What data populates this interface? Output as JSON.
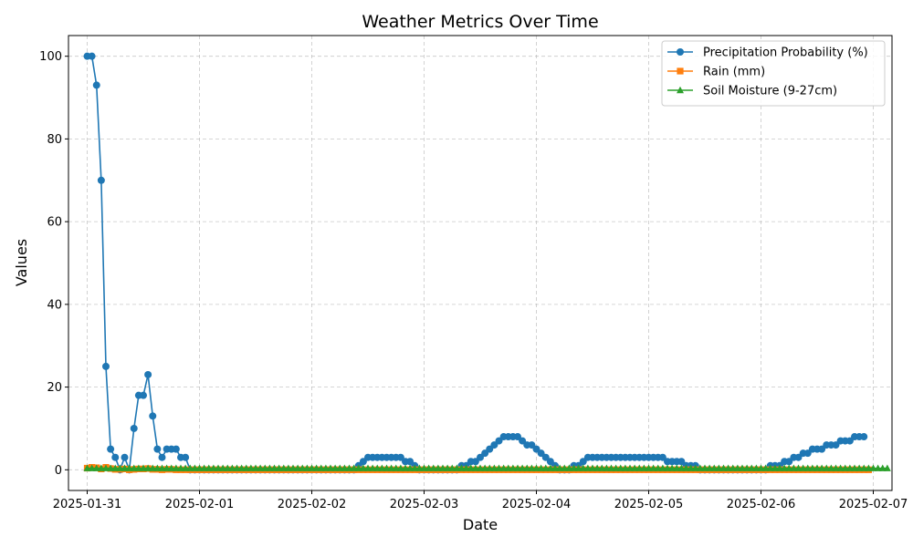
{
  "chart_data": {
    "type": "line",
    "title": "Weather Metrics Over Time",
    "xlabel": "Date",
    "ylabel": "Values",
    "x_start": "2025-01-31T00:00",
    "x_step_hours": 1,
    "xlim": [
      "2025-01-30T20:00",
      "2025-02-07T04:00"
    ],
    "ylim": [
      -5,
      105
    ],
    "x_ticks": [
      "2025-01-31",
      "2025-02-01",
      "2025-02-02",
      "2025-02-03",
      "2025-02-04",
      "2025-02-05",
      "2025-02-06",
      "2025-02-07"
    ],
    "y_ticks": [
      0,
      20,
      40,
      60,
      80,
      100
    ],
    "grid": true,
    "legend_position": "top-right",
    "series": [
      {
        "name": "Precipitation Probability (%)",
        "color": "#1f77b4",
        "marker": "circle",
        "values": [
          100,
          100,
          93,
          70,
          25,
          5,
          3,
          0,
          3,
          0,
          10,
          18,
          18,
          23,
          13,
          5,
          3,
          5,
          5,
          5,
          3,
          3,
          0,
          0,
          0,
          0,
          0,
          0,
          0,
          0,
          0,
          0,
          0,
          0,
          0,
          0,
          0,
          0,
          0,
          0,
          0,
          0,
          0,
          0,
          0,
          0,
          0,
          0,
          0,
          0,
          0,
          0,
          0,
          0,
          0,
          0,
          0,
          0,
          1,
          2,
          3,
          3,
          3,
          3,
          3,
          3,
          3,
          3,
          2,
          2,
          1,
          0,
          0,
          0,
          0,
          0,
          0,
          0,
          0,
          0,
          1,
          1,
          2,
          2,
          3,
          4,
          5,
          6,
          7,
          8,
          8,
          8,
          8,
          7,
          6,
          6,
          5,
          4,
          3,
          2,
          1,
          0,
          0,
          0,
          1,
          1,
          2,
          3,
          3,
          3,
          3,
          3,
          3,
          3,
          3,
          3,
          3,
          3,
          3,
          3,
          3,
          3,
          3,
          3,
          2,
          2,
          2,
          2,
          1,
          1,
          1,
          0,
          0,
          0,
          0,
          0,
          0,
          0,
          0,
          0,
          0,
          0,
          0,
          0,
          0,
          0,
          1,
          1,
          1,
          2,
          2,
          3,
          3,
          4,
          4,
          5,
          5,
          5,
          6,
          6,
          6,
          7,
          7,
          7,
          8,
          8,
          8
        ]
      },
      {
        "name": "Rain (mm)",
        "color": "#ff7f0e",
        "marker": "square",
        "values": [
          0.4,
          0.6,
          0.5,
          0.2,
          0.6,
          0.3,
          0.1,
          0.1,
          0.2,
          0,
          0.1,
          0.2,
          0.2,
          0.3,
          0.1,
          0.1,
          0,
          0.1,
          0.1,
          0,
          0,
          0,
          0,
          0,
          0,
          0,
          0,
          0,
          0,
          0,
          0,
          0,
          0,
          0,
          0,
          0,
          0,
          0,
          0,
          0,
          0,
          0,
          0,
          0,
          0,
          0,
          0,
          0,
          0,
          0,
          0,
          0,
          0,
          0,
          0,
          0,
          0,
          0,
          0,
          0,
          0,
          0,
          0,
          0,
          0,
          0,
          0,
          0,
          0,
          0,
          0,
          0,
          0,
          0,
          0,
          0,
          0,
          0,
          0,
          0,
          0,
          0,
          0,
          0,
          0,
          0,
          0,
          0,
          0,
          0,
          0,
          0,
          0,
          0,
          0,
          0,
          0,
          0,
          0,
          0,
          0,
          0,
          0,
          0,
          0,
          0,
          0,
          0,
          0,
          0,
          0,
          0,
          0,
          0,
          0,
          0,
          0,
          0,
          0,
          0,
          0,
          0,
          0,
          0,
          0,
          0,
          0,
          0,
          0,
          0,
          0,
          0,
          0,
          0,
          0,
          0,
          0,
          0,
          0,
          0,
          0,
          0,
          0,
          0,
          0,
          0,
          0,
          0,
          0,
          0,
          0,
          0,
          0,
          0,
          0,
          0,
          0,
          0,
          0,
          0,
          0,
          0,
          0,
          0,
          0,
          0,
          0,
          0
        ]
      },
      {
        "name": "Soil Moisture (9-27cm)",
        "color": "#2ca02c",
        "marker": "triangle",
        "values": [
          0.35,
          0.35,
          0.35,
          0.35,
          0.35,
          0.35,
          0.35,
          0.35,
          0.35,
          0.35,
          0.35,
          0.35,
          0.35,
          0.35,
          0.35,
          0.35,
          0.35,
          0.35,
          0.35,
          0.35,
          0.35,
          0.35,
          0.35,
          0.35,
          0.35,
          0.35,
          0.35,
          0.35,
          0.35,
          0.35,
          0.35,
          0.35,
          0.35,
          0.35,
          0.35,
          0.35,
          0.35,
          0.35,
          0.35,
          0.35,
          0.35,
          0.35,
          0.35,
          0.35,
          0.35,
          0.35,
          0.35,
          0.35,
          0.35,
          0.35,
          0.35,
          0.35,
          0.35,
          0.35,
          0.35,
          0.35,
          0.35,
          0.35,
          0.35,
          0.35,
          0.35,
          0.35,
          0.35,
          0.35,
          0.35,
          0.35,
          0.35,
          0.35,
          0.35,
          0.35,
          0.35,
          0.35,
          0.35,
          0.35,
          0.35,
          0.35,
          0.35,
          0.35,
          0.35,
          0.35,
          0.35,
          0.35,
          0.35,
          0.35,
          0.35,
          0.35,
          0.35,
          0.35,
          0.35,
          0.35,
          0.35,
          0.35,
          0.35,
          0.35,
          0.35,
          0.35,
          0.35,
          0.35,
          0.35,
          0.35,
          0.35,
          0.35,
          0.35,
          0.35,
          0.35,
          0.35,
          0.35,
          0.35,
          0.35,
          0.35,
          0.35,
          0.35,
          0.35,
          0.35,
          0.35,
          0.35,
          0.35,
          0.35,
          0.35,
          0.35,
          0.35,
          0.35,
          0.35,
          0.35,
          0.35,
          0.35,
          0.35,
          0.35,
          0.35,
          0.35,
          0.35,
          0.35,
          0.35,
          0.35,
          0.35,
          0.35,
          0.35,
          0.35,
          0.35,
          0.35,
          0.35,
          0.35,
          0.35,
          0.35,
          0.35,
          0.35,
          0.35,
          0.35,
          0.35,
          0.35,
          0.35,
          0.35,
          0.35,
          0.35,
          0.35,
          0.35,
          0.35,
          0.35,
          0.35,
          0.35,
          0.35,
          0.35,
          0.35,
          0.35,
          0.35,
          0.35,
          0.35,
          0.35,
          0.35,
          0.35,
          0.35,
          0.35
        ]
      }
    ]
  }
}
